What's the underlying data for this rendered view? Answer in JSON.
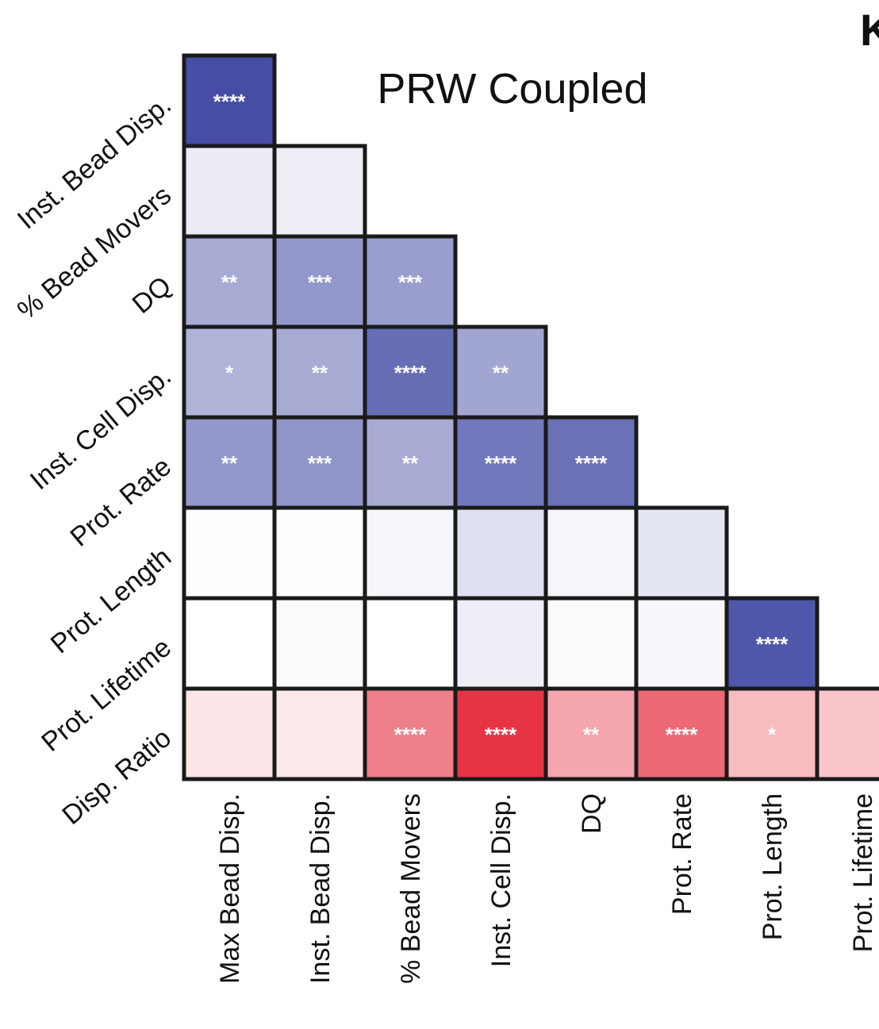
{
  "panel_letter": "K",
  "chart_data": {
    "type": "heatmap",
    "title": "PRW Coupled",
    "colors": {
      "negative": "#3b44a0",
      "positive": "#e5293b",
      "neutral": "#ffffff",
      "border": "#1a1a1a",
      "star": "#ffffff"
    },
    "row_labels": [
      "Inst. Bead Disp.",
      "% Bead Movers",
      "DQ",
      "Inst. Cell Disp.",
      "Prot. Rate",
      "Prot. Length",
      "Prot. Lifetime",
      "Disp. Ratio"
    ],
    "col_labels": [
      "Max Bead Disp.",
      "Inst. Bead Disp.",
      "% Bead Movers",
      "Inst. Cell Disp.",
      "DQ",
      "Prot. Rate",
      "Prot. Length",
      "Prot. Lifetime"
    ],
    "values": [
      [
        -0.95
      ],
      [
        -0.1,
        -0.09
      ],
      [
        -0.45,
        -0.55,
        -0.52
      ],
      [
        -0.4,
        -0.45,
        -0.78,
        -0.48
      ],
      [
        -0.55,
        -0.57,
        -0.45,
        -0.72,
        -0.76
      ],
      [
        0.01,
        0.005,
        -0.05,
        -0.16,
        -0.05,
        -0.14
      ],
      [
        0.0,
        -0.02,
        0.0,
        -0.09,
        -0.02,
        -0.04,
        -0.9
      ],
      [
        0.12,
        0.1,
        0.6,
        0.95,
        0.42,
        0.7,
        0.32,
        0.27
      ]
    ],
    "significance": [
      [
        "****"
      ],
      [
        "",
        ""
      ],
      [
        "**",
        "***",
        "***"
      ],
      [
        "*",
        "**",
        "****",
        "**"
      ],
      [
        "**",
        "***",
        "**",
        "****",
        "****"
      ],
      [
        "",
        "",
        "",
        "",
        "",
        ""
      ],
      [
        "",
        "",
        "",
        "",
        "",
        "",
        "****"
      ],
      [
        "",
        "",
        "****",
        "****",
        "**",
        "****",
        "*",
        ""
      ]
    ]
  }
}
